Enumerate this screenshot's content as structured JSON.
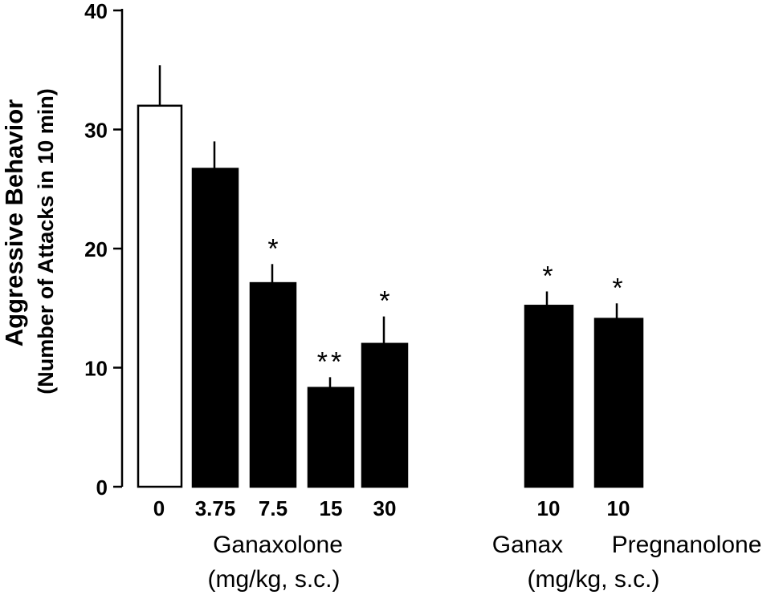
{
  "chart_data": {
    "type": "bar",
    "ylabel": "Aggressive Behavior",
    "ylabel_sub": "(Number of Attacks in 10 min)",
    "ylim": [
      0,
      40
    ],
    "yticks": [
      0,
      10,
      20,
      30,
      40
    ],
    "bars": [
      {
        "label": "0",
        "value": 32.0,
        "error": 3.4,
        "fill": "#ffffff",
        "sig": ""
      },
      {
        "label": "3.75",
        "value": 26.7,
        "error": 2.3,
        "fill": "#000000",
        "sig": ""
      },
      {
        "label": "7.5",
        "value": 17.1,
        "error": 1.6,
        "fill": "#000000",
        "sig": "*"
      },
      {
        "label": "15",
        "value": 8.3,
        "error": 0.9,
        "fill": "#000000",
        "sig": "**"
      },
      {
        "label": "30",
        "value": 12.0,
        "error": 2.3,
        "fill": "#000000",
        "sig": "*"
      },
      {
        "label": "10",
        "value": 15.2,
        "error": 1.2,
        "fill": "#000000",
        "sig": "*"
      },
      {
        "label": "10",
        "value": 14.1,
        "error": 1.3,
        "fill": "#000000",
        "sig": "*"
      }
    ],
    "groups": [
      {
        "line1": "Ganaxolone",
        "line2": "(mg/kg, s.c.)"
      },
      {
        "line1": "Ganax",
        "line2": "(mg/kg, s.c.)"
      },
      {
        "line1": "Pregnanolone"
      }
    ]
  }
}
